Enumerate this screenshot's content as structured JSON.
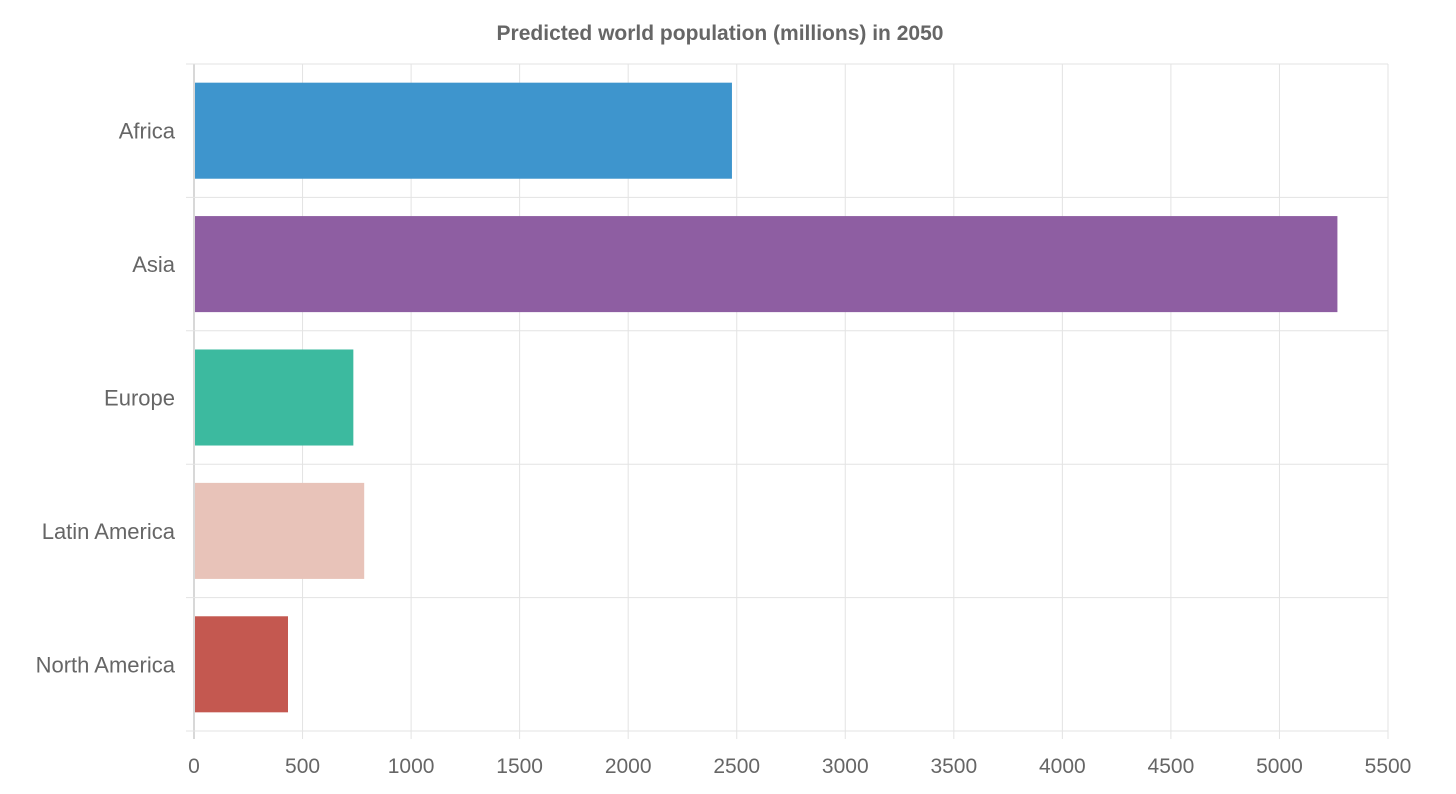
{
  "chart_data": {
    "type": "bar",
    "orientation": "horizontal",
    "title": "Predicted world population (millions) in 2050",
    "categories": [
      "Africa",
      "Asia",
      "Europe",
      "Latin America",
      "North America"
    ],
    "values": [
      2478,
      5267,
      734,
      784,
      433
    ],
    "colors": [
      "#3e95cd",
      "#8e5ea2",
      "#3cba9f",
      "#e8c3b9",
      "#c45850"
    ],
    "xlabel": "",
    "ylabel": "",
    "xlim": [
      0,
      5500
    ],
    "ticks": [
      "0",
      "500",
      "1000",
      "1500",
      "2000",
      "2500",
      "3000",
      "3500",
      "4000",
      "4500",
      "5000",
      "5500"
    ],
    "grid": true,
    "legend": "none"
  }
}
